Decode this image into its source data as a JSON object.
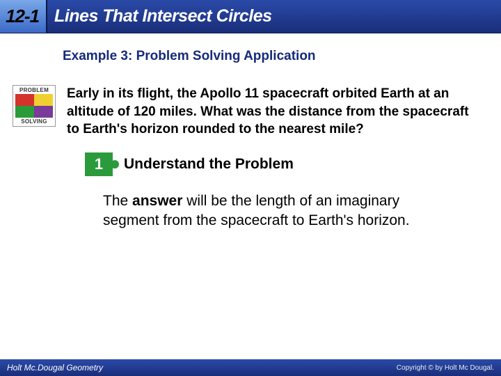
{
  "header": {
    "section_number": "12-1",
    "title": "Lines That Intersect Circles",
    "title_color": "#ffffff",
    "bg_gradient_top": "#2a4aa8",
    "bg_gradient_bottom": "#1a2e7a"
  },
  "example": {
    "label": "Example 3: Problem Solving Application",
    "color": "#162a7a",
    "fontsize": 19
  },
  "badge": {
    "top_label": "PROBLEM",
    "bottom_label": "SOLVING",
    "piece_colors": [
      "#d4322a",
      "#f0d030",
      "#2a9a3a",
      "#7a3a9a"
    ]
  },
  "problem": {
    "text": "Early in its flight, the Apollo 11 spacecraft orbited Earth at an altitude of 120 miles. What was the distance from the spacecraft to Earth's horizon rounded to the nearest mile?",
    "fontsize": 19,
    "fontweight": "bold"
  },
  "step": {
    "number": "1",
    "title": "Understand the Problem",
    "piece_color": "#2a9a3a"
  },
  "answer": {
    "lead_bold": "answer",
    "prefix": "The ",
    "suffix": " will be the length of an imaginary segment from the spacecraft to Earth's horizon.",
    "fontsize": 21
  },
  "footer": {
    "left": "Holt Mc.Dougal Geometry",
    "right": "Copyright © by Holt Mc Dougal."
  }
}
